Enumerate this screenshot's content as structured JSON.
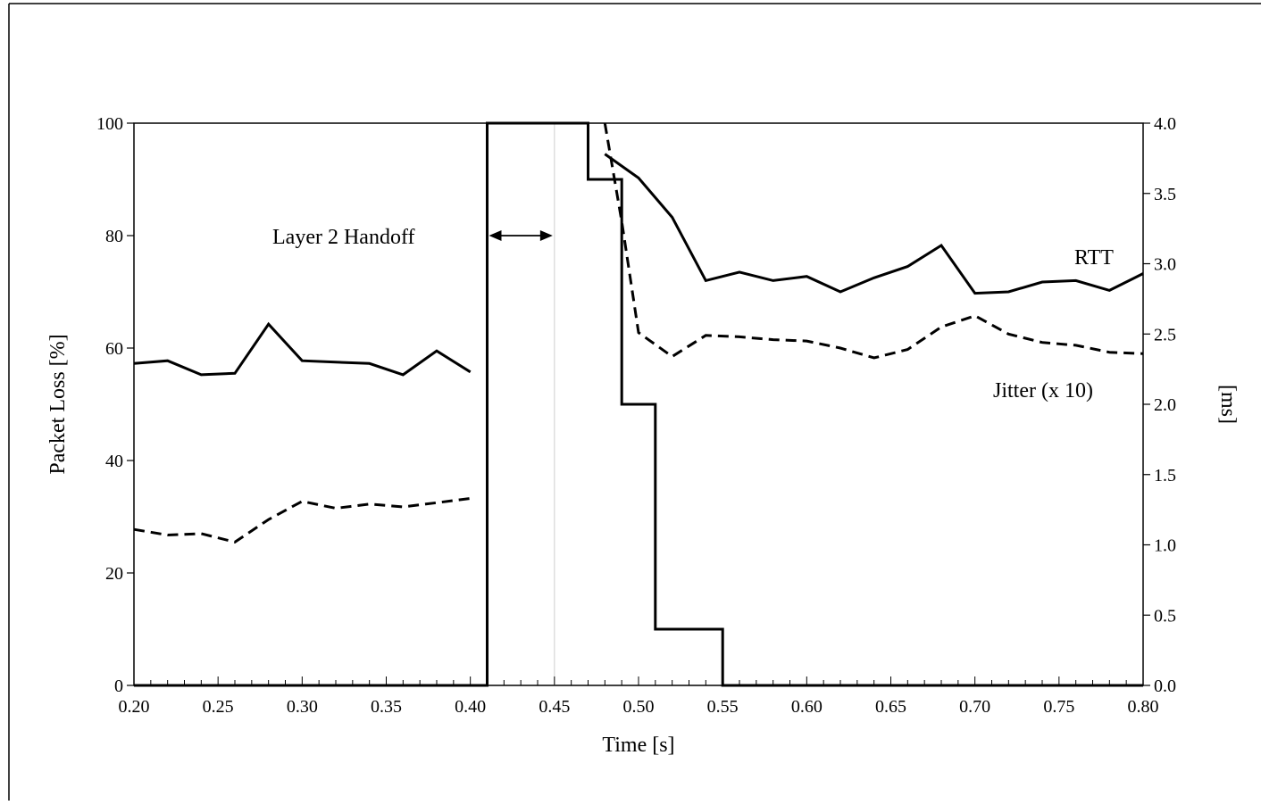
{
  "chart_data": {
    "type": "line",
    "xlabel": "Time  [s]",
    "ylabel_left": "Packet Loss [%]",
    "ylabel_right": "[ms]",
    "xlim": [
      0.2,
      0.8
    ],
    "ylim_left": [
      0,
      100
    ],
    "ylim_right": [
      0.0,
      4.0
    ],
    "x_ticks": [
      "0.20",
      "0.25",
      "0.30",
      "0.35",
      "0.40",
      "0.45",
      "0.50",
      "0.55",
      "0.60",
      "0.65",
      "0.70",
      "0.75",
      "0.80"
    ],
    "y_left_ticks": [
      "0",
      "20",
      "40",
      "60",
      "80",
      "100"
    ],
    "y_right_ticks": [
      "0.0",
      "0.5",
      "1.0",
      "1.5",
      "2.0",
      "2.5",
      "3.0",
      "3.5",
      "4.0"
    ],
    "annotations": {
      "handoff_label": "Layer 2 Handoff",
      "handoff_span": [
        0.41,
        0.45
      ],
      "rtt_label": "RTT",
      "jitter_label": "Jitter (x 10)"
    },
    "series": [
      {
        "key": "packet_loss",
        "axis": "left",
        "style": "step",
        "x": [
          0.2,
          0.41,
          0.41,
          0.47,
          0.47,
          0.49,
          0.49,
          0.51,
          0.51,
          0.55,
          0.55,
          0.8
        ],
        "y": [
          0,
          0,
          100,
          100,
          90,
          90,
          50,
          50,
          10,
          10,
          0,
          0
        ]
      },
      {
        "key": "rtt",
        "label": "RTT",
        "axis": "right",
        "style": "solid",
        "segments": [
          {
            "x": [
              0.2,
              0.22,
              0.24,
              0.26,
              0.28,
              0.3,
              0.32,
              0.34,
              0.36,
              0.38,
              0.4
            ],
            "y": [
              2.29,
              2.31,
              2.21,
              2.22,
              2.57,
              2.31,
              2.3,
              2.29,
              2.21,
              2.38,
              2.23
            ]
          },
          {
            "x": [
              0.48,
              0.5,
              0.52,
              0.54,
              0.56,
              0.58,
              0.6,
              0.62,
              0.64,
              0.66,
              0.68,
              0.7,
              0.72,
              0.74,
              0.76,
              0.78,
              0.8
            ],
            "y": [
              3.78,
              3.61,
              3.33,
              2.88,
              2.94,
              2.88,
              2.91,
              2.8,
              2.9,
              2.98,
              3.13,
              2.79,
              2.8,
              2.87,
              2.88,
              2.81,
              2.93
            ]
          }
        ]
      },
      {
        "key": "jitter",
        "label": "Jitter (x 10)",
        "axis": "right",
        "style": "dashed",
        "segments": [
          {
            "x": [
              0.2,
              0.22,
              0.24,
              0.26,
              0.28,
              0.3,
              0.32,
              0.34,
              0.36,
              0.38,
              0.4
            ],
            "y": [
              1.11,
              1.07,
              1.08,
              1.02,
              1.18,
              1.31,
              1.26,
              1.29,
              1.27,
              1.3,
              1.33
            ]
          },
          {
            "x": [
              0.48,
              0.49,
              0.5,
              0.52,
              0.54,
              0.56,
              0.58,
              0.6,
              0.62,
              0.64,
              0.66,
              0.68,
              0.7,
              0.72,
              0.74,
              0.76,
              0.78,
              0.8
            ],
            "y": [
              4.0,
              3.3,
              2.51,
              2.34,
              2.49,
              2.48,
              2.46,
              2.45,
              2.4,
              2.33,
              2.39,
              2.55,
              2.63,
              2.5,
              2.44,
              2.42,
              2.37,
              2.36
            ]
          }
        ]
      }
    ]
  }
}
